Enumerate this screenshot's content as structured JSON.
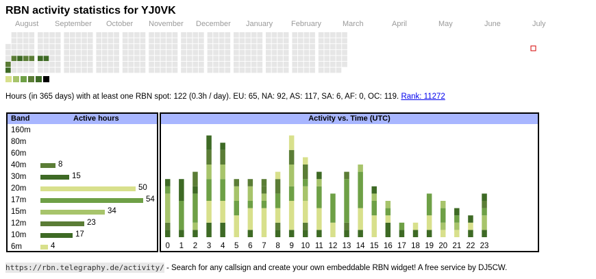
{
  "title": "RBN activity statistics for YJ0VK",
  "months": [
    "August",
    "September",
    "October",
    "November",
    "December",
    "January",
    "February",
    "March",
    "April",
    "May",
    "June",
    "July"
  ],
  "legend_colors": [
    "#d8e08c",
    "#a7c46b",
    "#6ea046",
    "#5b7d36",
    "#3e6a25",
    "#000000"
  ],
  "summary": {
    "text": "Hours (in 365 days) with at least one RBN spot: 122 (0.3h / day). EU: 65, NA: 92, AS: 117, SA: 6, AF: 0, OC: 119.",
    "rank_link": "Rank: 11272"
  },
  "band_table": {
    "header_band": "Band",
    "header_hours": "Active hours",
    "rows": [
      {
        "band": "160m",
        "hours": null,
        "color": ""
      },
      {
        "band": "80m",
        "hours": null,
        "color": ""
      },
      {
        "band": "60m",
        "hours": null,
        "color": ""
      },
      {
        "band": "40m",
        "hours": "8",
        "color": "#5b7d36"
      },
      {
        "band": "30m",
        "hours": "15",
        "color": "#3e6a25"
      },
      {
        "band": "20m",
        "hours": "50",
        "color": "#d8e08c"
      },
      {
        "band": "17m",
        "hours": "54",
        "color": "#6ea046"
      },
      {
        "band": "15m",
        "hours": "34",
        "color": "#a7c46b"
      },
      {
        "band": "12m",
        "hours": "23",
        "color": "#5b7d36"
      },
      {
        "band": "10m",
        "hours": "17",
        "color": "#3e6a25"
      },
      {
        "band": "6m",
        "hours": "4",
        "color": "#d8e08c"
      }
    ]
  },
  "chart_data": {
    "type": "bar",
    "title": "Activity vs. Time (UTC)",
    "categories": [
      "0",
      "1",
      "2",
      "3",
      "4",
      "5",
      "6",
      "7",
      "8",
      "9",
      "10",
      "11",
      "12",
      "13",
      "14",
      "15",
      "16",
      "17",
      "18",
      "19",
      "20",
      "21",
      "22",
      "23"
    ],
    "colors": {
      "6m": "#d8e08c",
      "10m": "#3e6a25",
      "12m": "#5b7d36",
      "15m": "#a7c46b",
      "17m": "#6ea046",
      "20m": "#d8e08c",
      "30m": "#3e6a25",
      "40m": "#5b7d36"
    },
    "stacks": [
      [
        [
          "10m",
          1
        ],
        [
          "12m",
          1
        ],
        [
          "15m",
          4
        ],
        [
          "17m",
          1
        ],
        [
          "30m",
          1
        ]
      ],
      [
        [
          "10m",
          1
        ],
        [
          "17m",
          4
        ],
        [
          "30m",
          3
        ]
      ],
      [
        [
          "10m",
          1
        ],
        [
          "15m",
          1
        ],
        [
          "17m",
          4
        ],
        [
          "30m",
          1
        ],
        [
          "40m",
          2
        ]
      ],
      [
        [
          "10m",
          2
        ],
        [
          "20m",
          3
        ],
        [
          "17m",
          3
        ],
        [
          "15m",
          2
        ],
        [
          "40m",
          2
        ],
        [
          "30m",
          2
        ]
      ],
      [
        [
          "10m",
          2
        ],
        [
          "20m",
          3
        ],
        [
          "17m",
          3
        ],
        [
          "15m",
          2
        ],
        [
          "40m",
          2
        ],
        [
          "30m",
          1
        ]
      ],
      [
        [
          "20m",
          3
        ],
        [
          "17m",
          2
        ],
        [
          "15m",
          2
        ],
        [
          "40m",
          1
        ]
      ],
      [
        [
          "10m",
          1
        ],
        [
          "20m",
          3
        ],
        [
          "17m",
          1
        ],
        [
          "15m",
          2
        ],
        [
          "12m",
          1
        ]
      ],
      [
        [
          "20m",
          4
        ],
        [
          "17m",
          1
        ],
        [
          "15m",
          1
        ],
        [
          "12m",
          1
        ],
        [
          "40m",
          1
        ]
      ],
      [
        [
          "10m",
          1
        ],
        [
          "12m",
          1
        ],
        [
          "20m",
          2
        ],
        [
          "17m",
          2
        ],
        [
          "40m",
          2
        ],
        [
          "20m",
          1
        ]
      ],
      [
        [
          "10m",
          1
        ],
        [
          "20m",
          4
        ],
        [
          "17m",
          2
        ],
        [
          "15m",
          3
        ],
        [
          "12m",
          2
        ],
        [
          "20m",
          2
        ]
      ],
      [
        [
          "10m",
          1
        ],
        [
          "12m",
          1
        ],
        [
          "20m",
          3
        ],
        [
          "15m",
          2
        ],
        [
          "17m",
          1
        ],
        [
          "12m",
          2
        ],
        [
          "20m",
          1
        ]
      ],
      [
        [
          "10m",
          1
        ],
        [
          "20m",
          3
        ],
        [
          "17m",
          3
        ],
        [
          "15m",
          1
        ],
        [
          "30m",
          1
        ]
      ],
      [
        [
          "20m",
          2
        ],
        [
          "17m",
          4
        ]
      ],
      [
        [
          "10m",
          1
        ],
        [
          "12m",
          1
        ],
        [
          "17m",
          6
        ],
        [
          "12m",
          1
        ]
      ],
      [
        [
          "10m",
          1
        ],
        [
          "20m",
          3
        ],
        [
          "17m",
          5
        ],
        [
          "15m",
          1
        ]
      ],
      [
        [
          "20m",
          3
        ],
        [
          "17m",
          2
        ],
        [
          "15m",
          1
        ],
        [
          "30m",
          1
        ]
      ],
      [
        [
          "10m",
          2
        ],
        [
          "20m",
          1
        ],
        [
          "17m",
          1
        ],
        [
          "15m",
          1
        ]
      ],
      [
        [
          "10m",
          1
        ],
        [
          "17m",
          1
        ]
      ],
      [
        [
          "10m",
          1
        ],
        [
          "20m",
          1
        ]
      ],
      [
        [
          "10m",
          1
        ],
        [
          "20m",
          2
        ],
        [
          "17m",
          3
        ]
      ],
      [
        [
          "20m",
          1
        ],
        [
          "15m",
          1
        ],
        [
          "17m",
          2
        ],
        [
          "15m",
          1
        ]
      ],
      [
        [
          "20m",
          1
        ],
        [
          "15m",
          1
        ],
        [
          "17m",
          1
        ],
        [
          "30m",
          1
        ]
      ],
      [
        [
          "10m",
          1
        ],
        [
          "20m",
          1
        ],
        [
          "30m",
          1
        ]
      ],
      [
        [
          "10m",
          1
        ],
        [
          "15m",
          2
        ],
        [
          "17m",
          1
        ],
        [
          "12m",
          1
        ],
        [
          "30m",
          1
        ]
      ]
    ]
  },
  "footer": {
    "url": "https://rbn.telegraphy.de/activity/",
    "text": " - Search for any callsign and create your own embeddable RBN widget! A free service by DJ5CW."
  }
}
